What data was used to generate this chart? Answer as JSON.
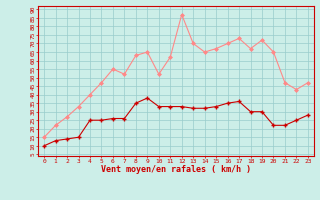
{
  "hours": [
    0,
    1,
    2,
    3,
    4,
    5,
    6,
    7,
    8,
    9,
    10,
    11,
    12,
    13,
    14,
    15,
    16,
    17,
    18,
    19,
    20,
    21,
    22,
    23
  ],
  "wind_avg": [
    10,
    13,
    14,
    15,
    25,
    25,
    26,
    26,
    35,
    38,
    33,
    33,
    33,
    32,
    32,
    33,
    35,
    36,
    30,
    30,
    22,
    22,
    25,
    28
  ],
  "wind_gust": [
    15,
    22,
    27,
    33,
    40,
    47,
    55,
    52,
    63,
    65,
    52,
    62,
    87,
    70,
    65,
    67,
    70,
    73,
    67,
    72,
    65,
    47,
    43,
    47
  ],
  "avg_color": "#cc0000",
  "gust_color": "#ff8888",
  "bg_color": "#cceee8",
  "grid_color": "#99cccc",
  "xlabel": "Vent moyen/en rafales ( km/h )",
  "xlabel_color": "#cc0000",
  "yticks": [
    5,
    10,
    15,
    20,
    25,
    30,
    35,
    40,
    45,
    50,
    55,
    60,
    65,
    70,
    75,
    80,
    85,
    90
  ],
  "ylim": [
    4,
    92
  ],
  "xlim": [
    -0.5,
    23.5
  ]
}
